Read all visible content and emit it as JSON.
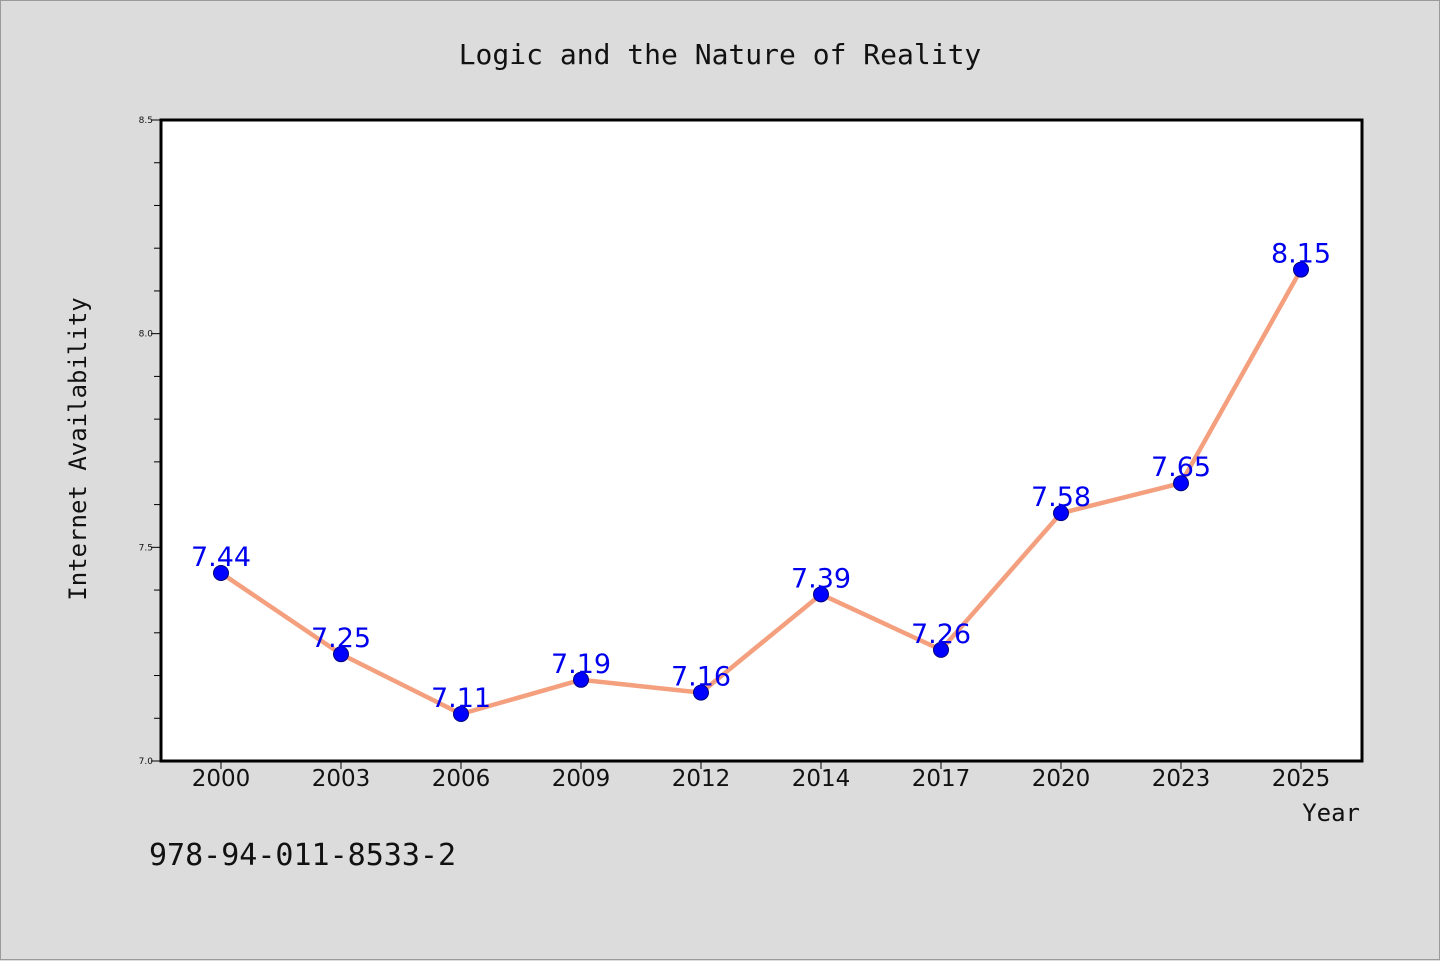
{
  "isbn": "978-94-011-8533-2",
  "colors": {
    "background": "#dcdcdc",
    "plot_background": "#ffffff",
    "line": "#f4a07e",
    "marker": "#0000ff",
    "marker_edge": "#00007a",
    "data_label": "#0000ee"
  },
  "chart_data": {
    "type": "line",
    "title": "Logic and the Nature of Reality",
    "xlabel": "Year",
    "ylabel": "Internet Availability",
    "categories": [
      "2000",
      "2003",
      "2006",
      "2009",
      "2012",
      "2014",
      "2017",
      "2020",
      "2023",
      "2025"
    ],
    "series": [
      {
        "values": [
          7.44,
          7.25,
          7.11,
          7.19,
          7.16,
          7.39,
          7.26,
          7.58,
          7.65,
          8.15
        ],
        "labels": [
          "7.44",
          "7.25",
          "7.11",
          "7.19",
          "7.16",
          "7.39",
          "7.26",
          "7.58",
          "7.65",
          "8.15"
        ]
      }
    ],
    "ylim": [
      7.0,
      8.5
    ],
    "y_ticks": [
      "7.0",
      "7.5",
      "8.0",
      "8.5"
    ],
    "y_tick_values": [
      7.0,
      7.5,
      8.0,
      8.5
    ],
    "y_minor_step": 0.1,
    "grid": false,
    "legend": "none"
  }
}
